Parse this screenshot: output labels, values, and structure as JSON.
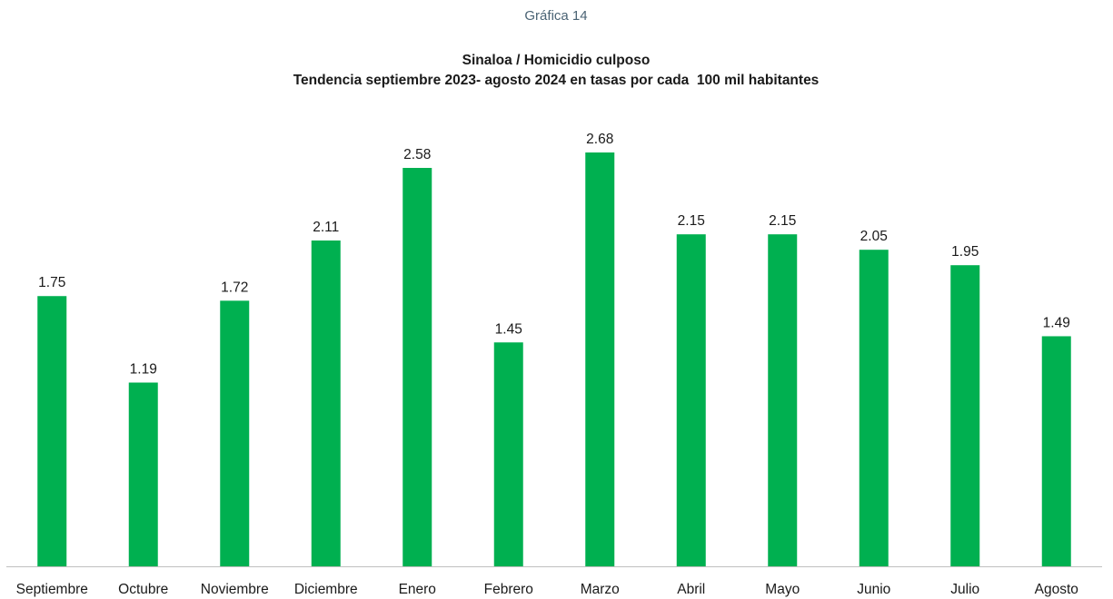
{
  "header": {
    "chart_number": "Gráfica 14"
  },
  "chart_data": {
    "type": "bar",
    "title": "Sinaloa / Homicidio culposo",
    "subtitle": "Tendencia septiembre 2023- agosto 2024 en tasas por cada  100 mil habitantes",
    "xlabel": "",
    "ylabel": "",
    "categories": [
      "Septiembre",
      "Octubre",
      "Noviembre",
      "Diciembre",
      "Enero",
      "Febrero",
      "Marzo",
      "Abril",
      "Mayo",
      "Junio",
      "Julio",
      "Agosto"
    ],
    "values": [
      1.75,
      1.19,
      1.72,
      2.11,
      2.58,
      1.45,
      2.68,
      2.15,
      2.15,
      2.05,
      1.95,
      1.49
    ],
    "value_labels": [
      "1.75",
      "1.19",
      "1.72",
      "2.11",
      "2.58",
      "1.45",
      "2.68",
      "2.15",
      "2.15",
      "2.05",
      "1.95",
      "1.49"
    ],
    "ylim": [
      0,
      2.68
    ],
    "grid": false,
    "legend": "none",
    "data_labels": "above bars",
    "bar_color": "#00b050",
    "baseline_color": "#bfbfbf"
  }
}
